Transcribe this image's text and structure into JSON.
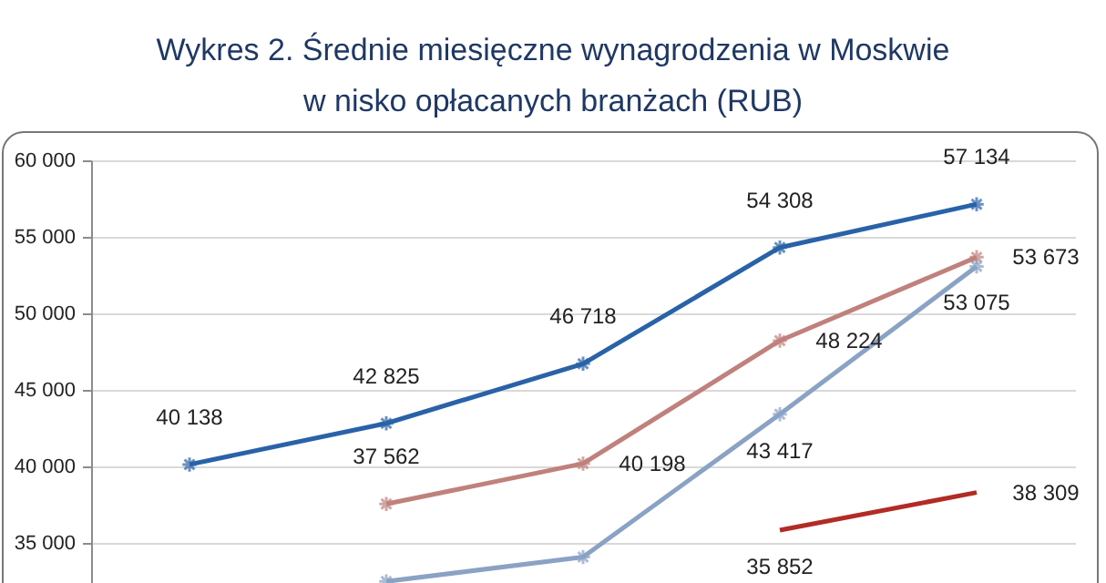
{
  "chart_data": {
    "type": "line",
    "title": "Wykres 2. Średnie miesięczne wynagrodzenia w Moskwie\nw nisko opłacanych branżach (RUB)",
    "categories": [
      null,
      null,
      null,
      null,
      null
    ],
    "series": [
      {
        "color": "#2a62a8",
        "marker": "cross",
        "values": [
          40138,
          42825,
          46718,
          54308,
          57134
        ],
        "value_labels": [
          "40 138",
          "42 825",
          "46 718",
          "54 308",
          "57 134"
        ]
      },
      {
        "color": "#c0817d",
        "marker": "cross",
        "values": [
          null,
          37562,
          40198,
          48224,
          53673
        ],
        "value_labels": [
          null,
          "37 562",
          "40 198",
          "48 224",
          "53 673"
        ]
      },
      {
        "color": "#8aa2c4",
        "marker": "cross",
        "values": [
          null,
          32500,
          34100,
          43417,
          53075
        ],
        "value_labels": [
          null,
          null,
          null,
          "43 417",
          "53 075"
        ]
      },
      {
        "color": "#b22b25",
        "values": [
          null,
          null,
          null,
          35852,
          38309
        ],
        "value_labels": [
          null,
          null,
          null,
          "35 852",
          "38 309"
        ]
      }
    ],
    "ylim": [
      32400,
      60000
    ],
    "yticks": [
      {
        "value": 35000,
        "label": "35 000"
      },
      {
        "value": 40000,
        "label": "40 000"
      },
      {
        "value": 45000,
        "label": "45 000"
      },
      {
        "value": 50000,
        "label": "50 000"
      },
      {
        "value": 55000,
        "label": "55 000"
      },
      {
        "value": 60000,
        "label": "60 000"
      }
    ],
    "grid": "y",
    "tick_labels": "y"
  }
}
